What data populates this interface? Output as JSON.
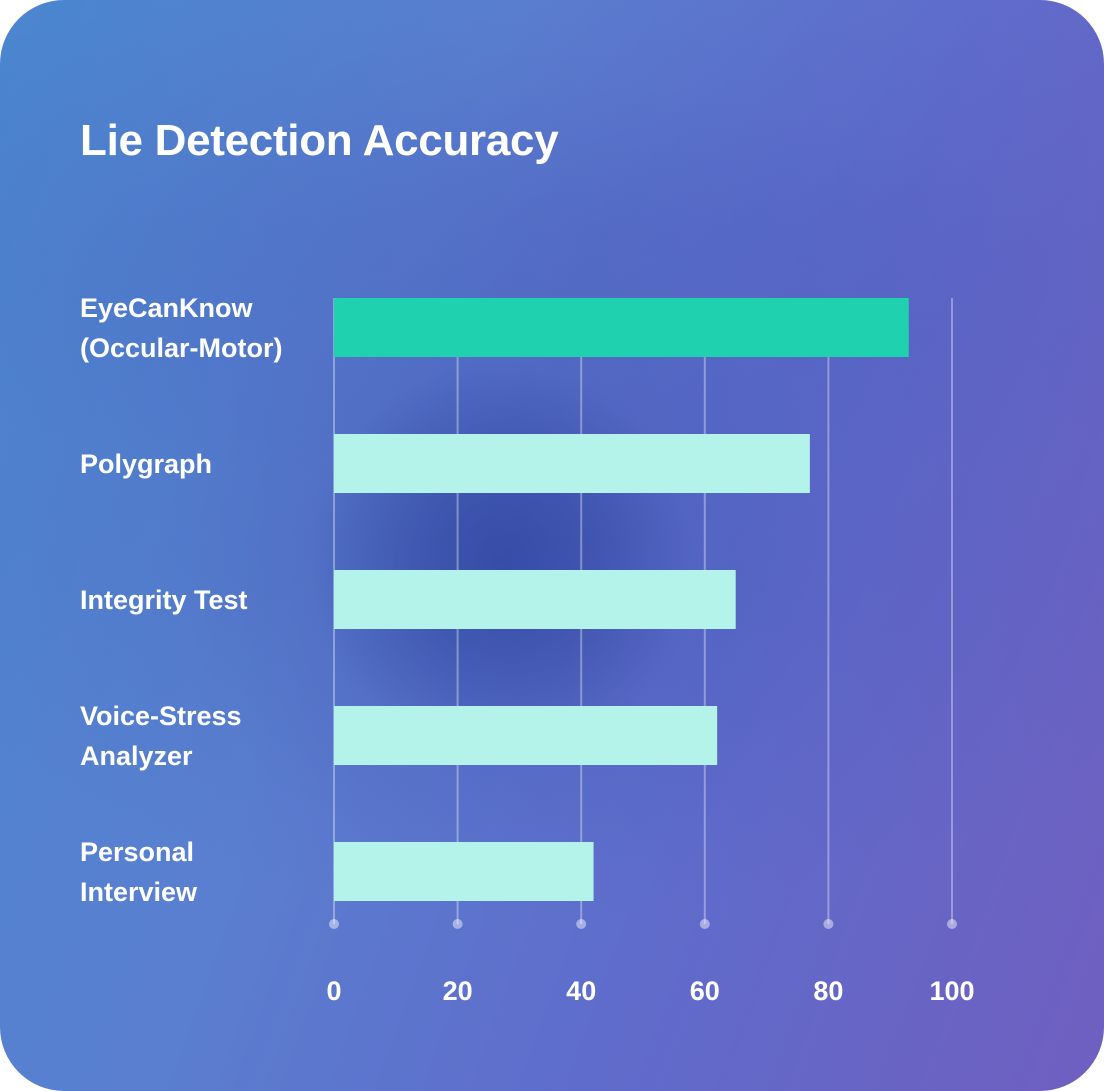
{
  "colors": {
    "highlight_bar": "#1fd1ae",
    "bar": "#b3f3e9",
    "grid": "rgba(255,255,255,0.35)",
    "text": "#ffffff"
  },
  "chart_data": {
    "type": "bar",
    "orientation": "horizontal",
    "title": "Lie Detection Accuracy",
    "categories": [
      "EyeCanKnow\n(Occular-Motor)",
      "Polygraph",
      "Integrity Test",
      "Voice-Stress\nAnalyzer",
      "Personal\nInterview"
    ],
    "values": [
      93,
      77,
      65,
      62,
      42
    ],
    "highlight_index": 0,
    "xlim": [
      0,
      100
    ],
    "xticks": [
      0,
      20,
      40,
      60,
      80,
      100
    ],
    "xlabel": "",
    "ylabel": "",
    "grid": "vertical"
  }
}
